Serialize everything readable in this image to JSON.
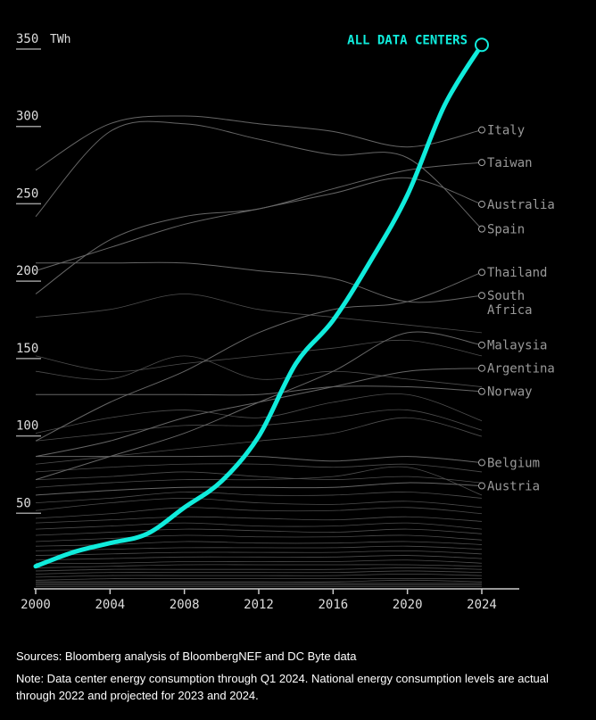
{
  "chart_data": {
    "type": "line",
    "title": "",
    "xlabel": "",
    "ylabel": "TWh",
    "xlim": [
      2000,
      2024
    ],
    "ylim": [
      0,
      350
    ],
    "x_ticks": [
      "2000",
      "2004",
      "2008",
      "2012",
      "2016",
      "2020",
      "2024"
    ],
    "y_ticks": [
      "50",
      "100",
      "150",
      "200",
      "250",
      "300",
      "350"
    ],
    "y_unit": "TWh",
    "grid": false,
    "x": [
      2000,
      2002,
      2004,
      2006,
      2008,
      2010,
      2012,
      2014,
      2016,
      2018,
      2020,
      2022,
      2024
    ],
    "highlight": {
      "name": "ALL DATA CENTERS",
      "color": "#10ecdc",
      "values": [
        14,
        23,
        29,
        35,
        52,
        69,
        98,
        145,
        173,
        211,
        254,
        312,
        351
      ]
    },
    "country_x": [
      2000,
      2004,
      2008,
      2012,
      2016,
      2020,
      2024
    ],
    "countries": [
      {
        "name": "Italy",
        "values": [
          270,
          300,
          305,
          300,
          295,
          285,
          296
        ]
      },
      {
        "name": "Taiwan",
        "values": [
          190,
          225,
          240,
          245,
          258,
          270,
          275
        ]
      },
      {
        "name": "Australia",
        "values": [
          205,
          220,
          235,
          245,
          255,
          265,
          248
        ]
      },
      {
        "name": "Spain",
        "values": [
          240,
          295,
          300,
          290,
          280,
          278,
          232
        ]
      },
      {
        "name": "Thailand",
        "values": [
          95,
          120,
          140,
          165,
          180,
          185,
          204
        ]
      },
      {
        "name": "South Africa",
        "values": [
          210,
          210,
          210,
          205,
          200,
          185,
          189
        ]
      },
      {
        "name": "Malaysia",
        "values": [
          70,
          85,
          100,
          120,
          140,
          165,
          157
        ]
      },
      {
        "name": "Argentina",
        "values": [
          85,
          95,
          110,
          120,
          130,
          140,
          142
        ]
      },
      {
        "name": "Norway",
        "values": [
          125,
          125,
          125,
          125,
          130,
          130,
          127
        ]
      },
      {
        "name": "Belgium",
        "values": [
          85,
          85,
          85,
          85,
          82,
          85,
          81
        ]
      },
      {
        "name": "Austria",
        "values": [
          60,
          63,
          65,
          65,
          65,
          68,
          66
        ]
      }
    ],
    "other_countries": [
      [
        140,
        135,
        150,
        135,
        140,
        135,
        130
      ],
      [
        175,
        180,
        190,
        180,
        175,
        170,
        165
      ],
      [
        150,
        140,
        145,
        150,
        155,
        160,
        150
      ],
      [
        100,
        110,
        115,
        110,
        120,
        125,
        108
      ],
      [
        95,
        100,
        105,
        105,
        110,
        115,
        102
      ],
      [
        80,
        85,
        90,
        95,
        100,
        110,
        98
      ],
      [
        75,
        78,
        80,
        80,
        78,
        80,
        75
      ],
      [
        70,
        72,
        75,
        72,
        70,
        72,
        68
      ],
      [
        65,
        68,
        70,
        70,
        72,
        78,
        60
      ],
      [
        55,
        58,
        62,
        60,
        60,
        62,
        58
      ],
      [
        50,
        55,
        58,
        55,
        54,
        56,
        52
      ],
      [
        45,
        48,
        52,
        50,
        50,
        52,
        48
      ],
      [
        42,
        44,
        46,
        45,
        44,
        46,
        43
      ],
      [
        38,
        40,
        42,
        40,
        40,
        42,
        38
      ],
      [
        34,
        36,
        38,
        37,
        36,
        38,
        35
      ],
      [
        30,
        32,
        34,
        33,
        33,
        34,
        31
      ],
      [
        27,
        28,
        30,
        29,
        29,
        30,
        28
      ],
      [
        24,
        25,
        26,
        26,
        26,
        27,
        25
      ],
      [
        21,
        22,
        23,
        23,
        23,
        24,
        22
      ],
      [
        18,
        19,
        20,
        20,
        20,
        21,
        19
      ],
      [
        16,
        16,
        17,
        17,
        17,
        18,
        16
      ],
      [
        13,
        14,
        15,
        15,
        15,
        15,
        14
      ],
      [
        11,
        12,
        12,
        12,
        12,
        13,
        12
      ],
      [
        9,
        10,
        10,
        10,
        10,
        11,
        10
      ],
      [
        7,
        8,
        8,
        8,
        8,
        9,
        8
      ],
      [
        5,
        6,
        6,
        6,
        6,
        6,
        6
      ],
      [
        4,
        4,
        4,
        4,
        4,
        5,
        4
      ],
      [
        3,
        3,
        3,
        3,
        3,
        3,
        3
      ],
      [
        2,
        2,
        2,
        2,
        2,
        2,
        2
      ],
      [
        1,
        1,
        1,
        1,
        1,
        1,
        1
      ]
    ]
  },
  "footer": {
    "sources": "Sources: Bloomberg analysis of BloombergNEF and DC Byte data",
    "note": "Note: Data center energy consumption through Q1 2024. National energy consumption levels are actual through 2022 and projected for 2023 and 2024."
  }
}
